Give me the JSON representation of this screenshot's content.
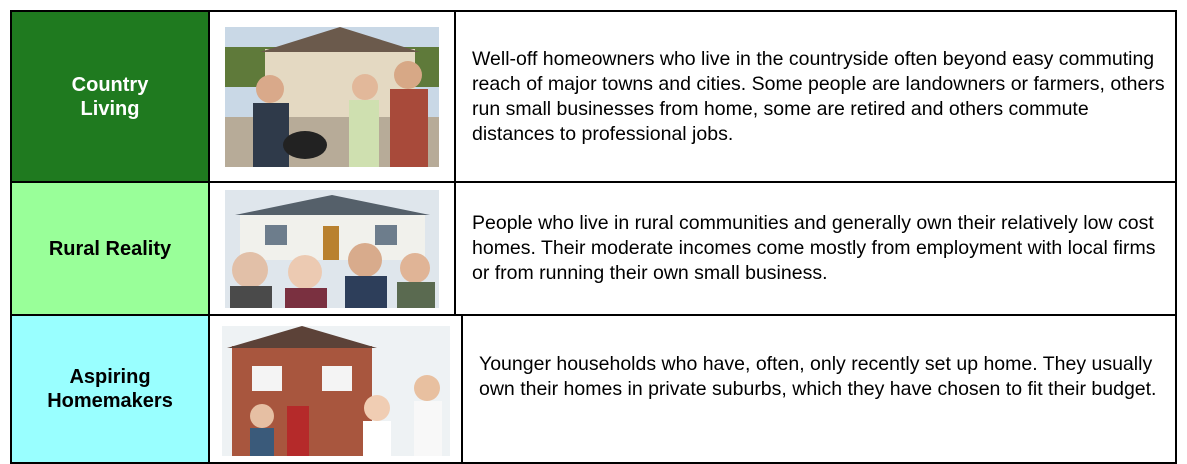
{
  "rows": [
    {
      "label": "Country Living",
      "description": "Well-off homeowners who live in the countryside often beyond easy commuting reach of major towns and cities. Some people are landowners or farmers, others run small businesses from home, some are retired and others commute distances to professional jobs."
    },
    {
      "label": "Rural Reality",
      "description": "People who live in rural communities and generally own their relatively low cost homes. Their moderate incomes come mostly from employment with local firms or from running their own small business."
    },
    {
      "label": "Aspiring Homemakers",
      "description": "Younger households who have, often, only recently set up home. They usually own their homes in private suburbs, which they have chosen to fit their budget."
    }
  ]
}
